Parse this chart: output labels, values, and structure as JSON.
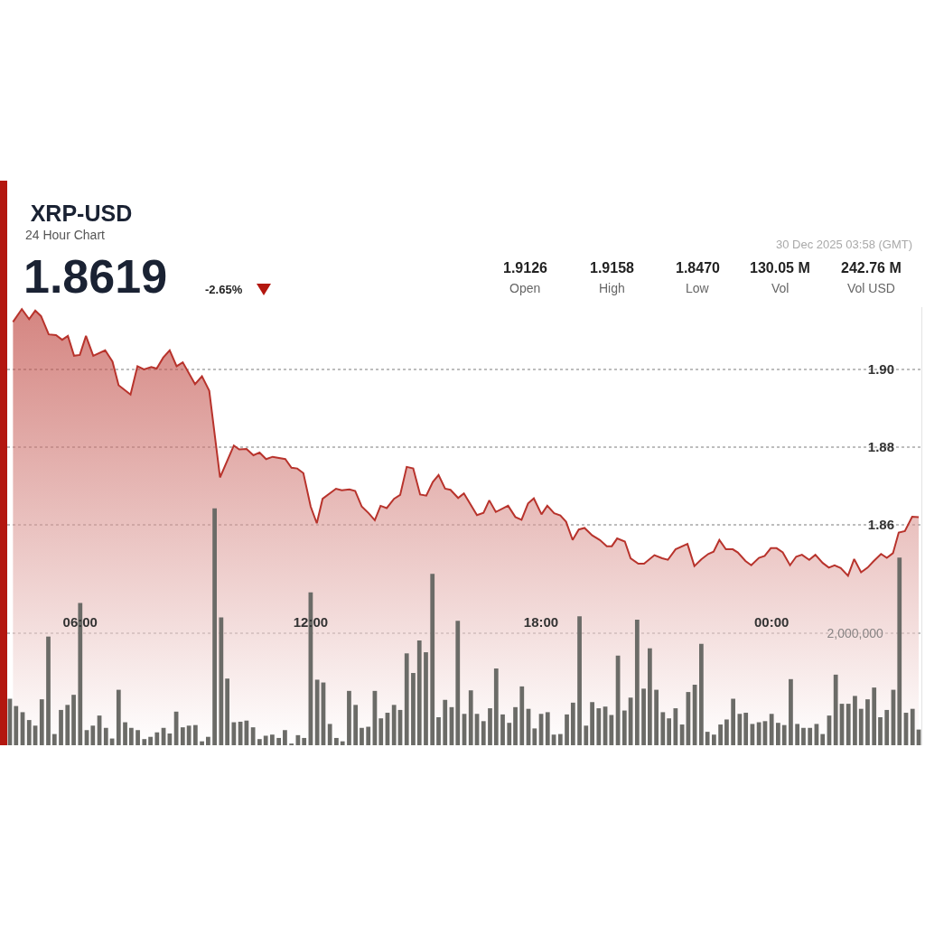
{
  "chart_data": {
    "type": "area",
    "title": "XRP-USD",
    "annotations": [
      "24 Hour Chart",
      "1.8619",
      "-2.65%",
      "1.9126",
      "Open",
      "1.9158",
      "High",
      "1.8470",
      "Low",
      "130.05 M",
      "Vol",
      "242.76 M",
      "Vol USD",
      "30 Dec 2025 03:58 (GMT)"
    ],
    "xlim": [
      4.1,
      27.9
    ],
    "xticks": [
      {
        "value": 6,
        "label": "06:00"
      },
      {
        "value": 12,
        "label": "12:00"
      },
      {
        "value": 18,
        "label": "18:00"
      },
      {
        "value": 24,
        "label": "00:00"
      }
    ],
    "ylim": [
      1.8033,
      1.916
    ],
    "yticks": [
      1.86,
      1.88,
      {
        "value": 1.9,
        "label": "1.90"
      }
    ],
    "y2lim": [
      0,
      7820000
    ],
    "y2ticks": [
      {
        "value": 2000000,
        "label": "2,000,000"
      }
    ],
    "grid": "y",
    "series": [
      {
        "color": "#b8332c",
        "x": [
          4.25,
          4.48,
          4.67,
          4.83,
          4.98,
          5.18,
          5.37,
          5.53,
          5.68,
          5.84,
          5.99,
          6.15,
          6.34,
          6.65,
          6.84,
          7.0,
          7.31,
          7.49,
          7.66,
          7.85,
          7.99,
          8.16,
          8.33,
          8.51,
          8.67,
          8.99,
          9.17,
          9.36,
          9.64,
          10.0,
          10.14,
          10.33,
          10.51,
          10.67,
          10.84,
          11.01,
          11.34,
          11.5,
          11.65,
          11.81,
          12.0,
          12.16,
          12.31,
          12.66,
          12.81,
          13.01,
          13.16,
          13.33,
          13.51,
          13.67,
          13.82,
          13.98,
          14.17,
          14.33,
          14.5,
          14.67,
          14.85,
          15.01,
          15.18,
          15.33,
          15.5,
          15.64,
          15.84,
          15.99,
          16.33,
          16.5,
          16.65,
          16.82,
          17.14,
          17.33,
          17.49,
          17.66,
          17.81,
          18.01,
          18.16,
          18.34,
          18.5,
          18.65,
          18.82,
          18.98,
          19.13,
          19.33,
          19.53,
          19.71,
          19.84,
          19.98,
          20.18,
          20.33,
          20.53,
          20.68,
          20.95,
          21.15,
          21.3,
          21.5,
          21.81,
          21.99,
          22.17,
          22.35,
          22.49,
          22.64,
          22.81,
          22.99,
          23.12,
          23.32,
          23.47,
          23.67,
          23.82,
          23.98,
          24.13,
          24.29,
          24.48,
          24.64,
          24.79,
          24.98,
          25.14,
          25.33,
          25.49,
          25.64,
          25.8,
          25.99,
          26.15,
          26.33,
          26.5,
          26.65,
          26.85,
          27.0,
          27.16,
          27.31,
          27.47,
          27.66,
          27.83
        ],
        "values": [
          1.9122,
          1.9155,
          1.9129,
          1.9151,
          1.9137,
          1.909,
          1.9088,
          1.9076,
          1.9086,
          1.9035,
          1.9037,
          1.9086,
          1.9035,
          1.9049,
          1.902,
          1.8959,
          1.8935,
          1.9008,
          1.9,
          1.9006,
          1.9002,
          1.903,
          1.9049,
          1.9008,
          1.9018,
          1.8962,
          1.8982,
          1.8945,
          1.8722,
          1.8804,
          1.8794,
          1.8795,
          1.8779,
          1.8786,
          1.8769,
          1.8775,
          1.8769,
          1.8747,
          1.8745,
          1.8733,
          1.8647,
          1.8604,
          1.8667,
          1.8693,
          1.8689,
          1.8691,
          1.8687,
          1.8647,
          1.863,
          1.8612,
          1.8649,
          1.8643,
          1.8667,
          1.8677,
          1.8749,
          1.8745,
          1.8678,
          1.8675,
          1.871,
          1.8728,
          1.8693,
          1.869,
          1.8669,
          1.8681,
          1.8625,
          1.8631,
          1.8663,
          1.8633,
          1.8649,
          1.862,
          1.8613,
          1.8655,
          1.8668,
          1.8627,
          1.8649,
          1.863,
          1.8624,
          1.8608,
          1.8561,
          1.8588,
          1.8592,
          1.8573,
          1.8561,
          1.8545,
          1.8545,
          1.8565,
          1.8557,
          1.8514,
          1.85,
          1.85,
          1.8522,
          1.8514,
          1.851,
          1.8537,
          1.8551,
          1.8494,
          1.8511,
          1.8525,
          1.8531,
          1.8561,
          1.8537,
          1.8537,
          1.8529,
          1.8507,
          1.8496,
          1.8515,
          1.852,
          1.854,
          1.854,
          1.8529,
          1.8496,
          1.8518,
          1.8523,
          1.851,
          1.8523,
          1.8502,
          1.849,
          1.8496,
          1.8489,
          1.8469,
          1.8512,
          1.8478,
          1.849,
          1.8506,
          1.8525,
          1.8515,
          1.8527,
          1.858,
          1.8584,
          1.8621,
          1.862
        ]
      },
      {
        "type": "bar",
        "axis": "y2",
        "color": "#6b6b67",
        "x": [
          4.17,
          4.33,
          4.5,
          4.67,
          4.83,
          5,
          5.17,
          5.33,
          5.5,
          5.67,
          5.83,
          6,
          6.17,
          6.33,
          6.5,
          6.67,
          6.83,
          7,
          7.17,
          7.33,
          7.5,
          7.67,
          7.83,
          8,
          8.17,
          8.33,
          8.5,
          8.67,
          8.83,
          9,
          9.17,
          9.33,
          9.5,
          9.67,
          9.83,
          10,
          10.17,
          10.33,
          10.5,
          10.67,
          10.83,
          11,
          11.17,
          11.33,
          11.5,
          11.67,
          11.83,
          12,
          12.17,
          12.33,
          12.5,
          12.67,
          12.83,
          13,
          13.17,
          13.33,
          13.5,
          13.67,
          13.83,
          14,
          14.17,
          14.33,
          14.5,
          14.67,
          14.83,
          15,
          15.17,
          15.33,
          15.5,
          15.67,
          15.83,
          16,
          16.17,
          16.33,
          16.5,
          16.67,
          16.83,
          17,
          17.17,
          17.33,
          17.5,
          17.67,
          17.83,
          18,
          18.17,
          18.33,
          18.5,
          18.67,
          18.83,
          19,
          19.17,
          19.33,
          19.5,
          19.67,
          19.83,
          20,
          20.17,
          20.33,
          20.5,
          20.67,
          20.83,
          21,
          21.17,
          21.33,
          21.5,
          21.67,
          21.83,
          22,
          22.17,
          22.33,
          22.5,
          22.67,
          22.83,
          23,
          23.17,
          23.33,
          23.5,
          23.67,
          23.83,
          24,
          24.17,
          24.33,
          24.5,
          24.67,
          24.83,
          25,
          25.17,
          25.33,
          25.5,
          25.67,
          25.83,
          26,
          26.17,
          26.33,
          26.5,
          26.67,
          26.83,
          27,
          27.17,
          27.33,
          27.5,
          27.67,
          27.83
        ],
        "values": [
          830000,
          700000,
          590000,
          450000,
          350000,
          820000,
          1940000,
          200000,
          630000,
          720000,
          900000,
          2540000,
          270000,
          350000,
          530000,
          310000,
          120000,
          990000,
          410000,
          310000,
          270000,
          110000,
          150000,
          230000,
          310000,
          210000,
          600000,
          320000,
          350000,
          360000,
          70000,
          150000,
          4230000,
          2280000,
          1190000,
          410000,
          420000,
          440000,
          320000,
          110000,
          170000,
          190000,
          130000,
          270000,
          30000,
          180000,
          130000,
          2730000,
          1170000,
          1120000,
          380000,
          130000,
          70000,
          970000,
          720000,
          310000,
          330000,
          970000,
          480000,
          580000,
          720000,
          630000,
          1640000,
          1290000,
          1870000,
          1660000,
          3060000,
          500000,
          810000,
          680000,
          2220000,
          560000,
          980000,
          560000,
          430000,
          660000,
          1370000,
          550000,
          400000,
          680000,
          1050000,
          650000,
          300000,
          560000,
          590000,
          190000,
          200000,
          550000,
          760000,
          2300000,
          350000,
          770000,
          660000,
          690000,
          540000,
          1600000,
          620000,
          850000,
          2240000,
          1010000,
          1730000,
          990000,
          590000,
          480000,
          660000,
          370000,
          950000,
          1080000,
          1810000,
          240000,
          190000,
          370000,
          460000,
          830000,
          560000,
          580000,
          380000,
          410000,
          430000,
          560000,
          400000,
          360000,
          1180000,
          380000,
          310000,
          310000,
          380000,
          200000,
          530000,
          1260000,
          740000,
          740000,
          880000,
          650000,
          820000,
          1030000,
          500000,
          630000,
          990000,
          3350000,
          580000,
          650000,
          280000
        ]
      }
    ]
  }
}
